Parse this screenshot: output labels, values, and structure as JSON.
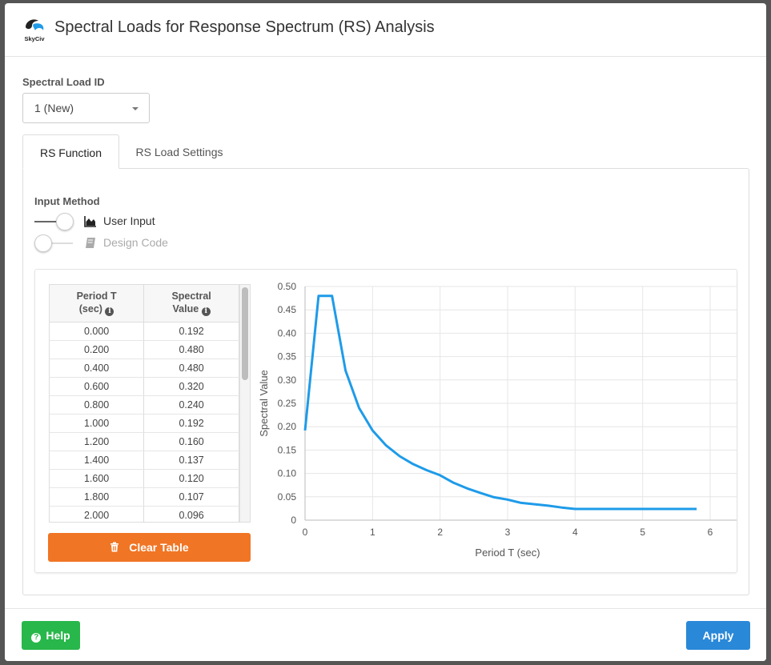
{
  "header": {
    "logo_text": "SkyCiv",
    "title": "Spectral Loads for Response Spectrum (RS) Analysis"
  },
  "spectral_load": {
    "label": "Spectral Load ID",
    "selected": "1 (New)"
  },
  "tabs": [
    {
      "label": "RS Function",
      "active": true
    },
    {
      "label": "RS Load Settings",
      "active": false
    }
  ],
  "input_method": {
    "label": "Input Method",
    "options": [
      {
        "label": "User Input",
        "on": true,
        "icon": "area-chart-icon"
      },
      {
        "label": "Design Code",
        "on": false,
        "icon": "book-icon"
      }
    ]
  },
  "table": {
    "columns": [
      {
        "line1": "Period T",
        "line2": "(sec)"
      },
      {
        "line1": "Spectral",
        "line2": "Value"
      }
    ],
    "rows": [
      [
        "0.000",
        "0.192"
      ],
      [
        "0.200",
        "0.480"
      ],
      [
        "0.400",
        "0.480"
      ],
      [
        "0.600",
        "0.320"
      ],
      [
        "0.800",
        "0.240"
      ],
      [
        "1.000",
        "0.192"
      ],
      [
        "1.200",
        "0.160"
      ],
      [
        "1.400",
        "0.137"
      ],
      [
        "1.600",
        "0.120"
      ],
      [
        "1.800",
        "0.107"
      ],
      [
        "2.000",
        "0.096"
      ]
    ],
    "clear_label": "Clear Table"
  },
  "chart_data": {
    "type": "line",
    "xlabel": "Period T (sec)",
    "ylabel": "Spectral Value",
    "xlim": [
      0,
      6
    ],
    "ylim": [
      0,
      0.5
    ],
    "xticks": [
      "0",
      "1",
      "2",
      "3",
      "4",
      "5",
      "6"
    ],
    "yticks": [
      "0",
      "0.05",
      "0.10",
      "0.15",
      "0.20",
      "0.25",
      "0.30",
      "0.35",
      "0.40",
      "0.45",
      "0.50"
    ],
    "grid": true,
    "color": "#1e9be9",
    "x": [
      0,
      0.2,
      0.4,
      0.6,
      0.8,
      1.0,
      1.2,
      1.4,
      1.6,
      1.8,
      2.0,
      2.2,
      2.4,
      2.6,
      2.8,
      3.0,
      3.2,
      3.4,
      3.6,
      3.8,
      4.0,
      4.2,
      4.4,
      4.6,
      4.8,
      5.0,
      5.2,
      5.4,
      5.6,
      5.8
    ],
    "y": [
      0.192,
      0.48,
      0.48,
      0.32,
      0.24,
      0.192,
      0.16,
      0.137,
      0.12,
      0.107,
      0.096,
      0.08,
      0.068,
      0.058,
      0.049,
      0.044,
      0.037,
      0.034,
      0.031,
      0.027,
      0.024,
      0.024,
      0.024,
      0.024,
      0.024,
      0.024,
      0.024,
      0.024,
      0.024,
      0.024
    ]
  },
  "footer": {
    "help_label": "Help",
    "apply_label": "Apply"
  }
}
